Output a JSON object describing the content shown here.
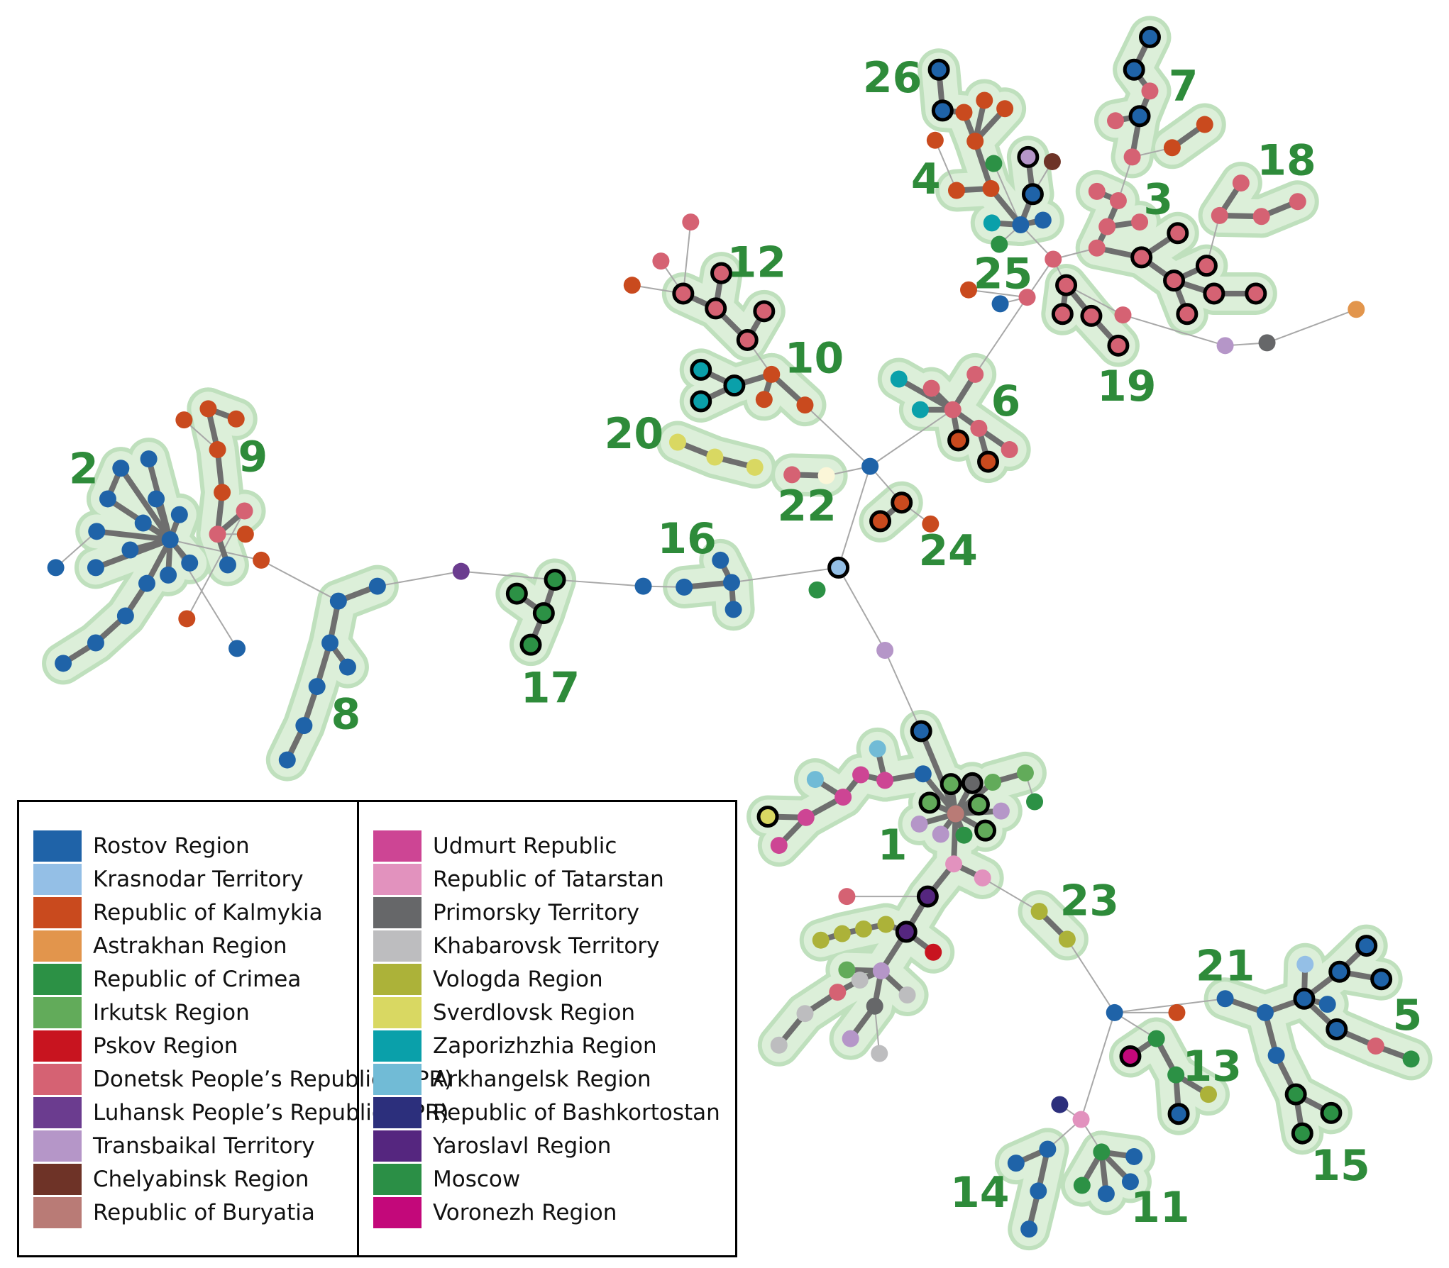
{
  "legend": {
    "left": [
      {
        "label": "Rostov Region",
        "color": "#1f63a8"
      },
      {
        "label": "Krasnodar Territory",
        "color": "#94bfe6"
      },
      {
        "label": "Republic of Kalmykia",
        "color": "#c94a1e"
      },
      {
        "label": "Astrakhan Region",
        "color": "#e2954c"
      },
      {
        "label": "Republic of Crimea",
        "color": "#2c9145"
      },
      {
        "label": "Irkutsk Region",
        "color": "#62ab5a"
      },
      {
        "label": "Pskov Region",
        "color": "#c8141f"
      },
      {
        "label": "Donetsk People’s Republic (DPR)",
        "color": "#d56273"
      },
      {
        "label": "Luhansk People’s Republic (LPR)",
        "color": "#6b3c8f"
      },
      {
        "label": "Transbaikal Territory",
        "color": "#b596c8"
      },
      {
        "label": "Chelyabinsk Region",
        "color": "#6e3327"
      },
      {
        "label": "Republic of Buryatia",
        "color": "#b97b76"
      }
    ],
    "right": [
      {
        "label": "Udmurt Republic",
        "color": "#cd4594"
      },
      {
        "label": "Republic of Tatarstan",
        "color": "#e292be"
      },
      {
        "label": "Primorsky Territory",
        "color": "#666769"
      },
      {
        "label": "Khabarovsk Territory",
        "color": "#bdbdbf"
      },
      {
        "label": "Vologda Region",
        "color": "#acb239"
      },
      {
        "label": "Sverdlovsk Region",
        "color": "#d9d862"
      },
      {
        "label": "Zaporizhzhia Region",
        "color": "#0aa0aa"
      },
      {
        "label": "Arkhangelsk Region",
        "color": "#71bbd6"
      },
      {
        "label": "Republic of Bashkortostan",
        "color": "#2c2f7c"
      },
      {
        "label": "Yaroslavl Region",
        "color": "#55267f"
      },
      {
        "label": "Moscow",
        "color": "#2b8f46"
      },
      {
        "label": "Voronezh Region",
        "color": "#c3087a"
      }
    ]
  },
  "clusters": [
    "1",
    "2",
    "3",
    "4",
    "5",
    "6",
    "7",
    "8",
    "9",
    "10",
    "11",
    "12",
    "13",
    "14",
    "15",
    "16",
    "17",
    "18",
    "19",
    "20",
    "21",
    "22",
    "23",
    "24",
    "25",
    "26"
  ]
}
